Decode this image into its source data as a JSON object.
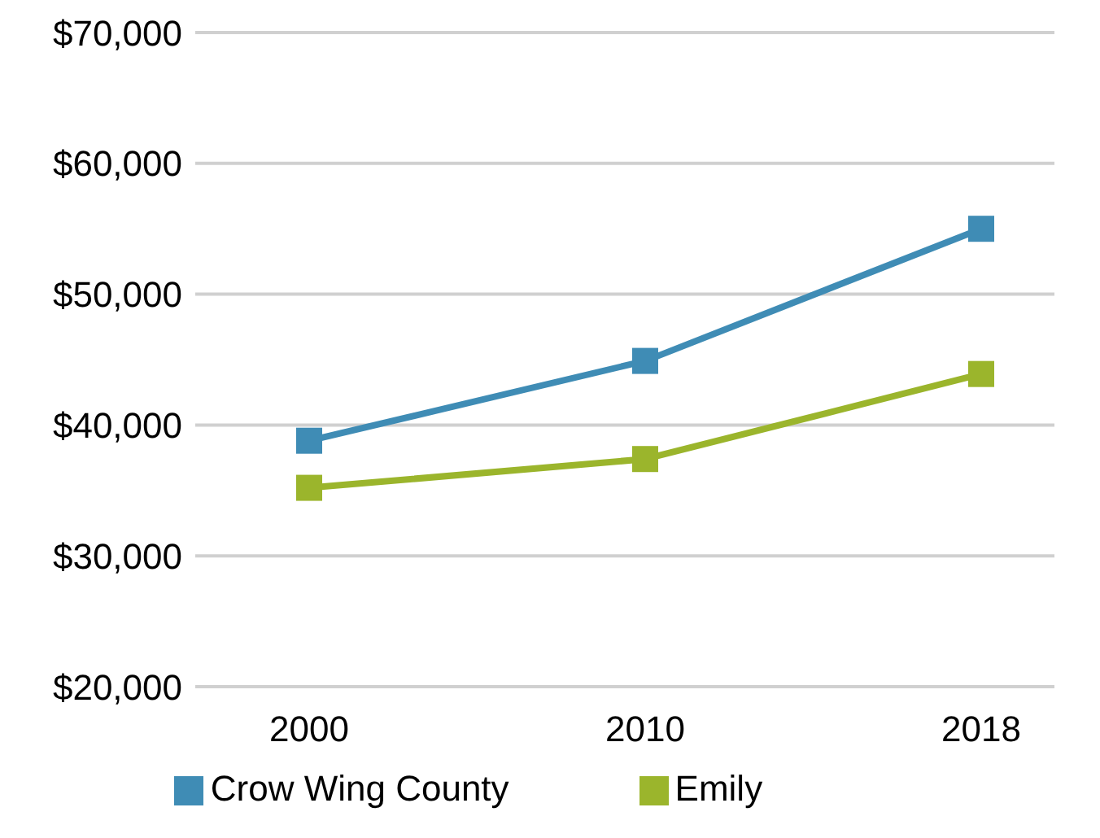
{
  "chart_data": {
    "type": "line",
    "categories": [
      "2000",
      "2010",
      "2018"
    ],
    "series": [
      {
        "name": "Emily",
        "color": "#9bb52c",
        "values": [
          35200,
          37400,
          43900
        ]
      },
      {
        "name": "Crow Wing County",
        "color": "#3f8cb5",
        "values": [
          38800,
          44900,
          55000
        ]
      }
    ],
    "ylim": [
      20000,
      70000
    ],
    "yticks": [
      {
        "value": 20000,
        "label": "$20,000"
      },
      {
        "value": 30000,
        "label": "$30,000"
      },
      {
        "value": 40000,
        "label": "$40,000"
      },
      {
        "value": 50000,
        "label": "$50,000"
      },
      {
        "value": 60000,
        "label": "$60,000"
      },
      {
        "value": 70000,
        "label": "$70,000"
      }
    ],
    "grid": "y",
    "legend": "bottom",
    "marker": "square",
    "line_style": "solid"
  }
}
